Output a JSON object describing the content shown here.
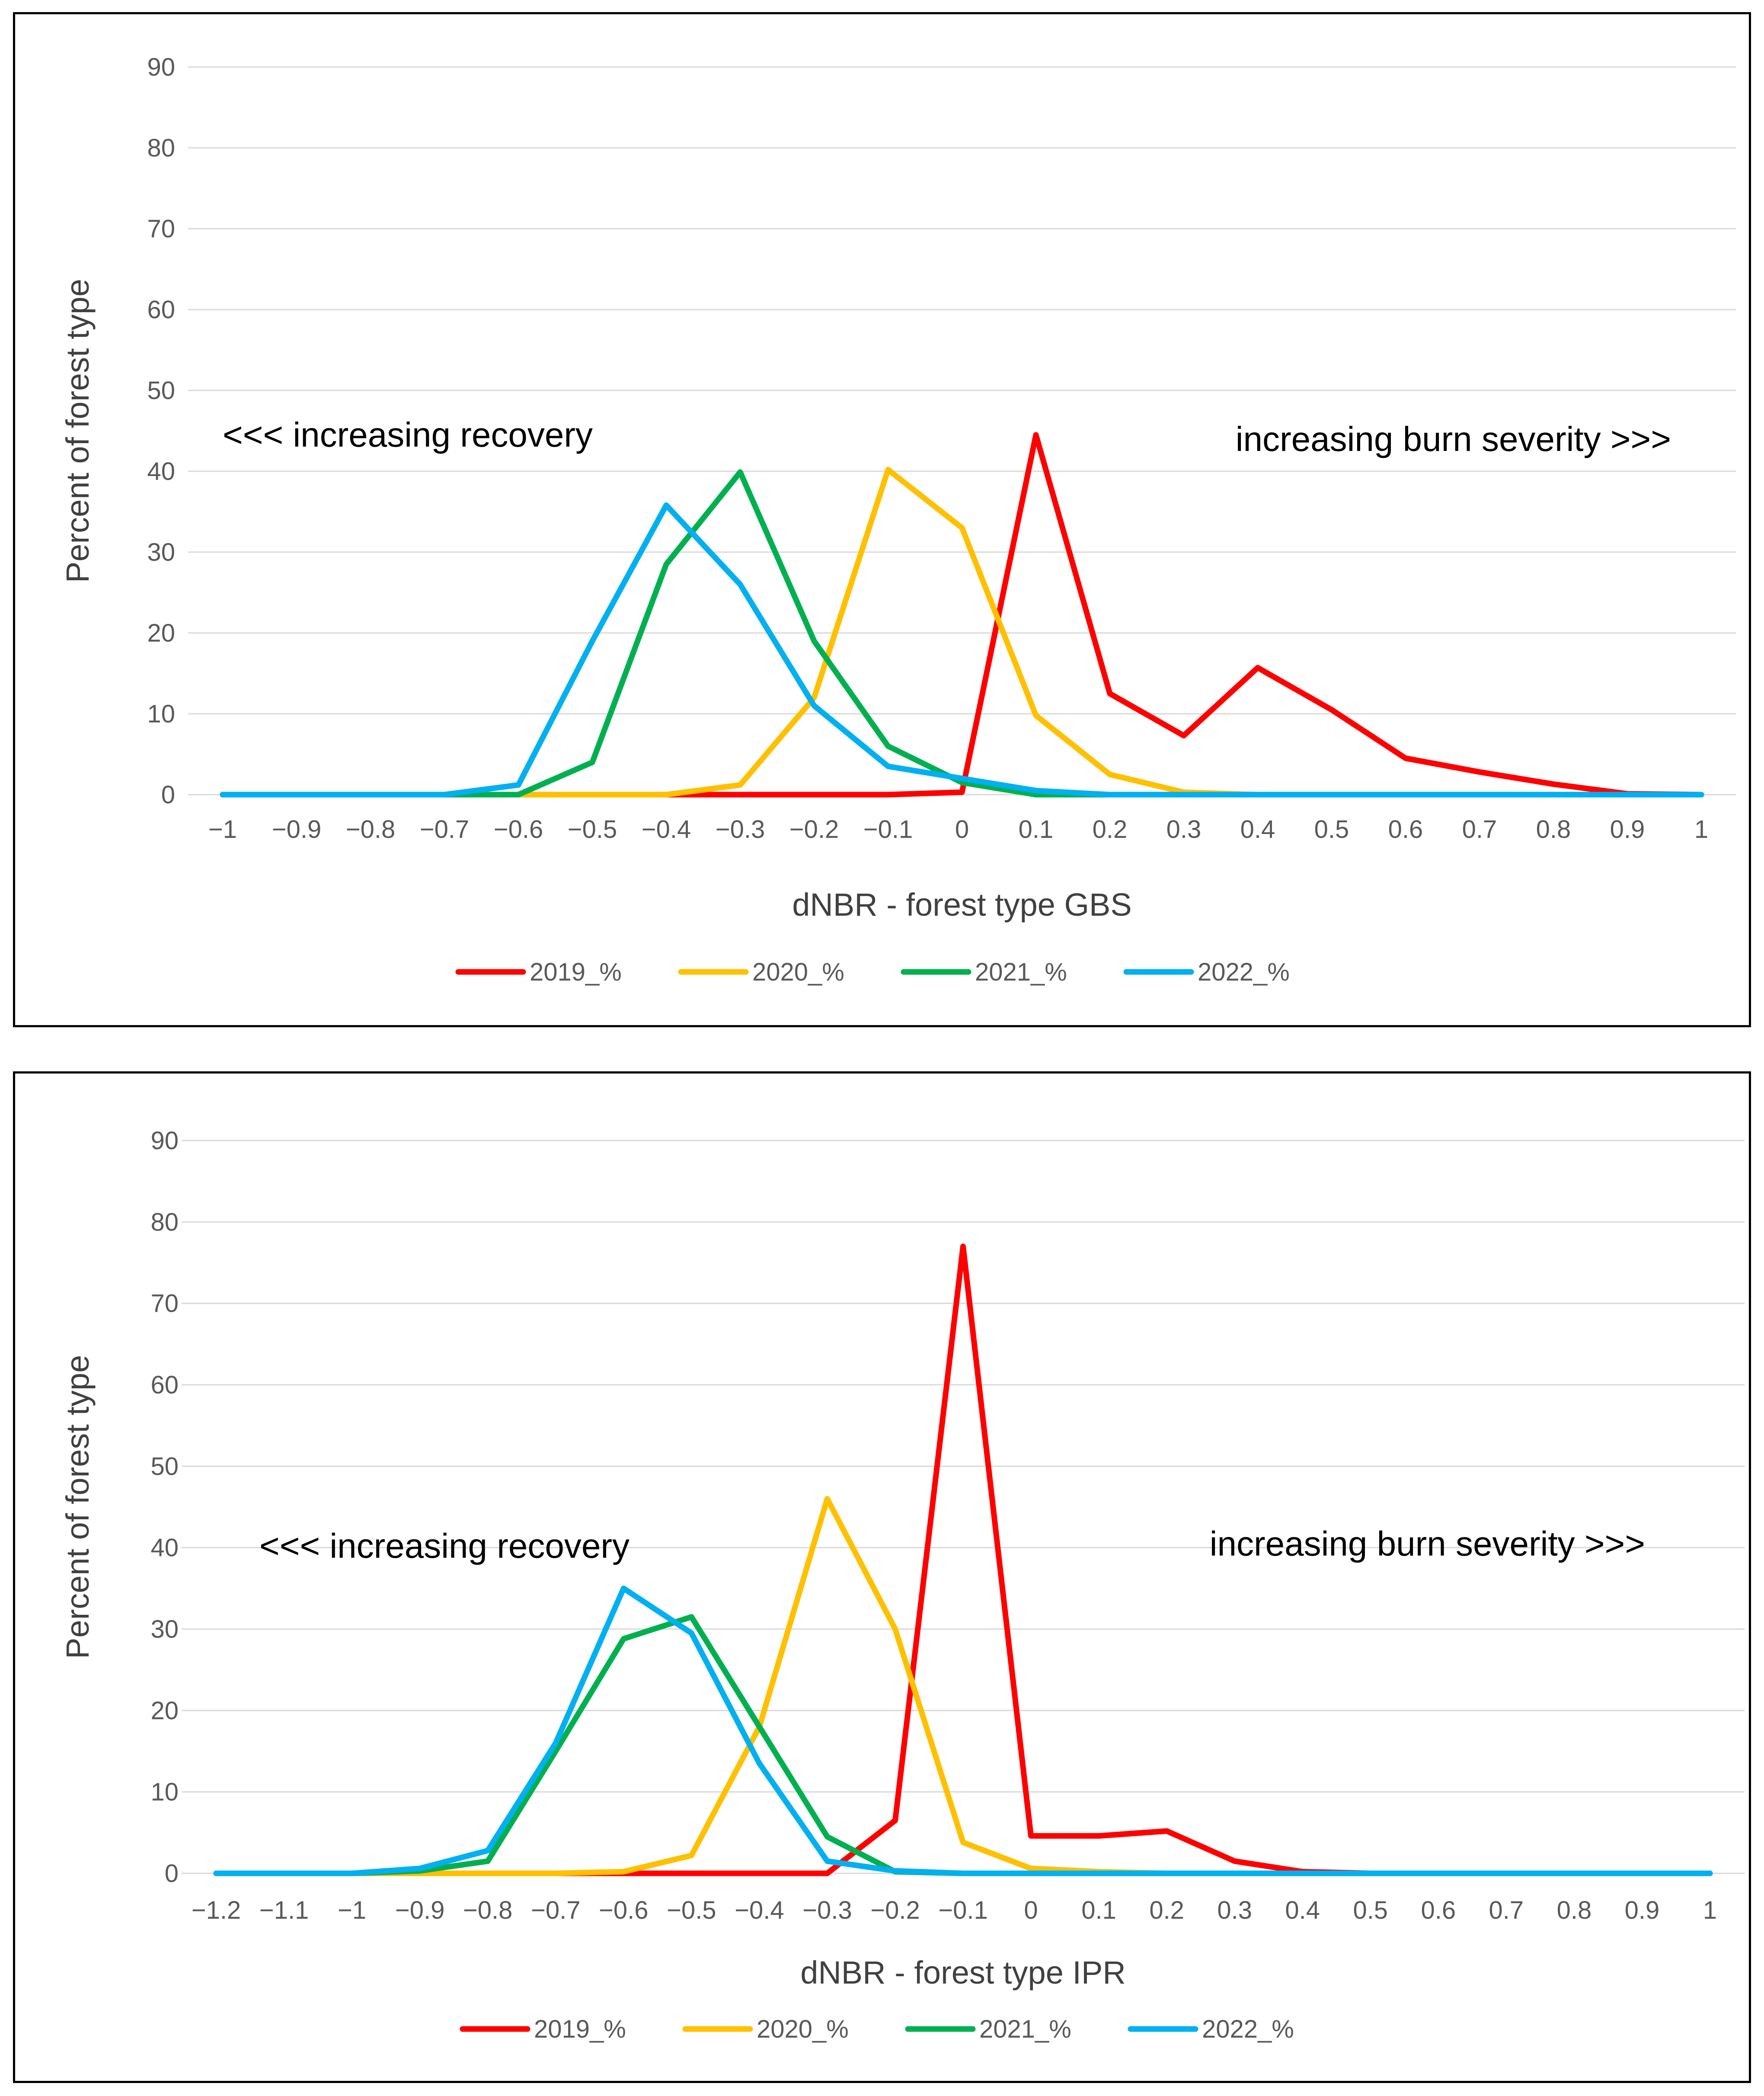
{
  "chart_data": [
    {
      "type": "line",
      "title": "",
      "xlabel": "dNBR - forest type GBS",
      "ylabel": "Percent of forest type",
      "ylim": [
        0,
        90
      ],
      "yticks": [
        "0",
        "10",
        "20",
        "30",
        "40",
        "50",
        "60",
        "70",
        "80",
        "90"
      ],
      "categories": [
        "−1",
        "−0.9",
        "−0.8",
        "−0.7",
        "−0.6",
        "−0.5",
        "−0.4",
        "−0.3",
        "−0.2",
        "−0.1",
        "0",
        "0.1",
        "0.2",
        "0.3",
        "0.4",
        "0.5",
        "0.6",
        "0.7",
        "0.8",
        "0.9",
        "1"
      ],
      "series": [
        {
          "name": "2019_%",
          "color": "#ff0000",
          "values": [
            0,
            0,
            0,
            0,
            0,
            0,
            0,
            0,
            0,
            0,
            0.3,
            44.5,
            12.5,
            7.3,
            15.7,
            10.5,
            4.5,
            2.8,
            1.3,
            0.1,
            0
          ]
        },
        {
          "name": "2020_%",
          "color": "#ffc000",
          "values": [
            0,
            0,
            0,
            0,
            0,
            0,
            0,
            1.2,
            12,
            40.2,
            33,
            9.8,
            2.5,
            0.3,
            0,
            0,
            0,
            0,
            0,
            0,
            0
          ]
        },
        {
          "name": "2021_%",
          "color": "#00b050",
          "values": [
            0,
            0,
            0,
            0,
            0,
            4,
            28.5,
            39.9,
            19,
            6,
            1.5,
            0,
            0,
            0,
            0,
            0,
            0,
            0,
            0,
            0,
            0
          ]
        },
        {
          "name": "2022_%",
          "color": "#00b0f0",
          "values": [
            0,
            0,
            0,
            0,
            1.2,
            19,
            35.8,
            26,
            11,
            3.5,
            2,
            0.5,
            0,
            0,
            0,
            0,
            0,
            0,
            0,
            0,
            0
          ]
        }
      ],
      "annotations": [
        "<<< increasing recovery",
        "increasing burn severity >>>"
      ]
    },
    {
      "type": "line",
      "title": "",
      "xlabel": "dNBR - forest type  IPR",
      "ylabel": "Percent of forest type",
      "ylim": [
        0,
        90
      ],
      "yticks": [
        "0",
        "10",
        "20",
        "30",
        "40",
        "50",
        "60",
        "70",
        "80",
        "90"
      ],
      "categories": [
        "−1.2",
        "−1.1",
        "−1",
        "−0.9",
        "−0.8",
        "−0.7",
        "−0.6",
        "−0.5",
        "−0.4",
        "−0.3",
        "−0.2",
        "−0.1",
        "0",
        "0.1",
        "0.2",
        "0.3",
        "0.4",
        "0.5",
        "0.6",
        "0.7",
        "0.8",
        "0.9",
        "1"
      ],
      "series": [
        {
          "name": "2019_%",
          "color": "#ff0000",
          "values": [
            0,
            0,
            0,
            0,
            0,
            0,
            0,
            0,
            0,
            0,
            6.5,
            77,
            4.6,
            4.6,
            5.2,
            1.5,
            0.2,
            0,
            0,
            0,
            0,
            0,
            0
          ]
        },
        {
          "name": "2020_%",
          "color": "#ffc000",
          "values": [
            0,
            0,
            0,
            0,
            0,
            0,
            0.2,
            2.2,
            18,
            46,
            30,
            3.8,
            0.6,
            0.2,
            0,
            0,
            0,
            0,
            0,
            0,
            0,
            0,
            0
          ]
        },
        {
          "name": "2021_%",
          "color": "#00b050",
          "values": [
            0,
            0,
            0,
            0.3,
            1.5,
            15,
            28.8,
            31.5,
            18,
            4.5,
            0.2,
            0,
            0,
            0,
            0,
            0,
            0,
            0,
            0,
            0,
            0,
            0,
            0
          ]
        },
        {
          "name": "2022_%",
          "color": "#00b0f0",
          "values": [
            0,
            0,
            0,
            0.6,
            2.8,
            16,
            35,
            29.5,
            13.5,
            1.5,
            0.3,
            0,
            0,
            0,
            0,
            0,
            0,
            0,
            0,
            0,
            0,
            0,
            0
          ]
        }
      ],
      "annotations": [
        "<<< increasing recovery",
        "increasing burn severity >>>"
      ]
    }
  ]
}
